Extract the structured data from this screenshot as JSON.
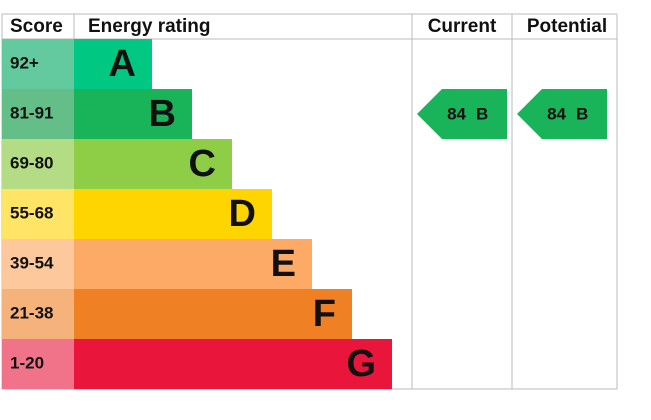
{
  "header": {
    "score": "Score",
    "rating": "Energy rating",
    "current": "Current",
    "potential": "Potential"
  },
  "rows": [
    {
      "score": "92+",
      "rating": "A",
      "color": "#00c781",
      "score_color": "#63c99e"
    },
    {
      "score": "81-91",
      "rating": "B",
      "color": "#19b459",
      "score_color": "#63bf87"
    },
    {
      "score": "69-80",
      "rating": "C",
      "color": "#8dce46",
      "score_color": "#b4dc84"
    },
    {
      "score": "55-68",
      "rating": "D",
      "color": "#ffd500",
      "score_color": "#ffe466"
    },
    {
      "score": "39-54",
      "rating": "E",
      "color": "#fcaa65",
      "score_color": "#fdc89c"
    },
    {
      "score": "21-38",
      "rating": "F",
      "color": "#ef8023",
      "score_color": "#f5b27b"
    },
    {
      "score": "1-20",
      "rating": "G",
      "color": "#e9153b",
      "score_color": "#f07389"
    }
  ],
  "current": {
    "score": 84,
    "band": "B"
  },
  "potential": {
    "score": 84,
    "band": "B"
  }
}
